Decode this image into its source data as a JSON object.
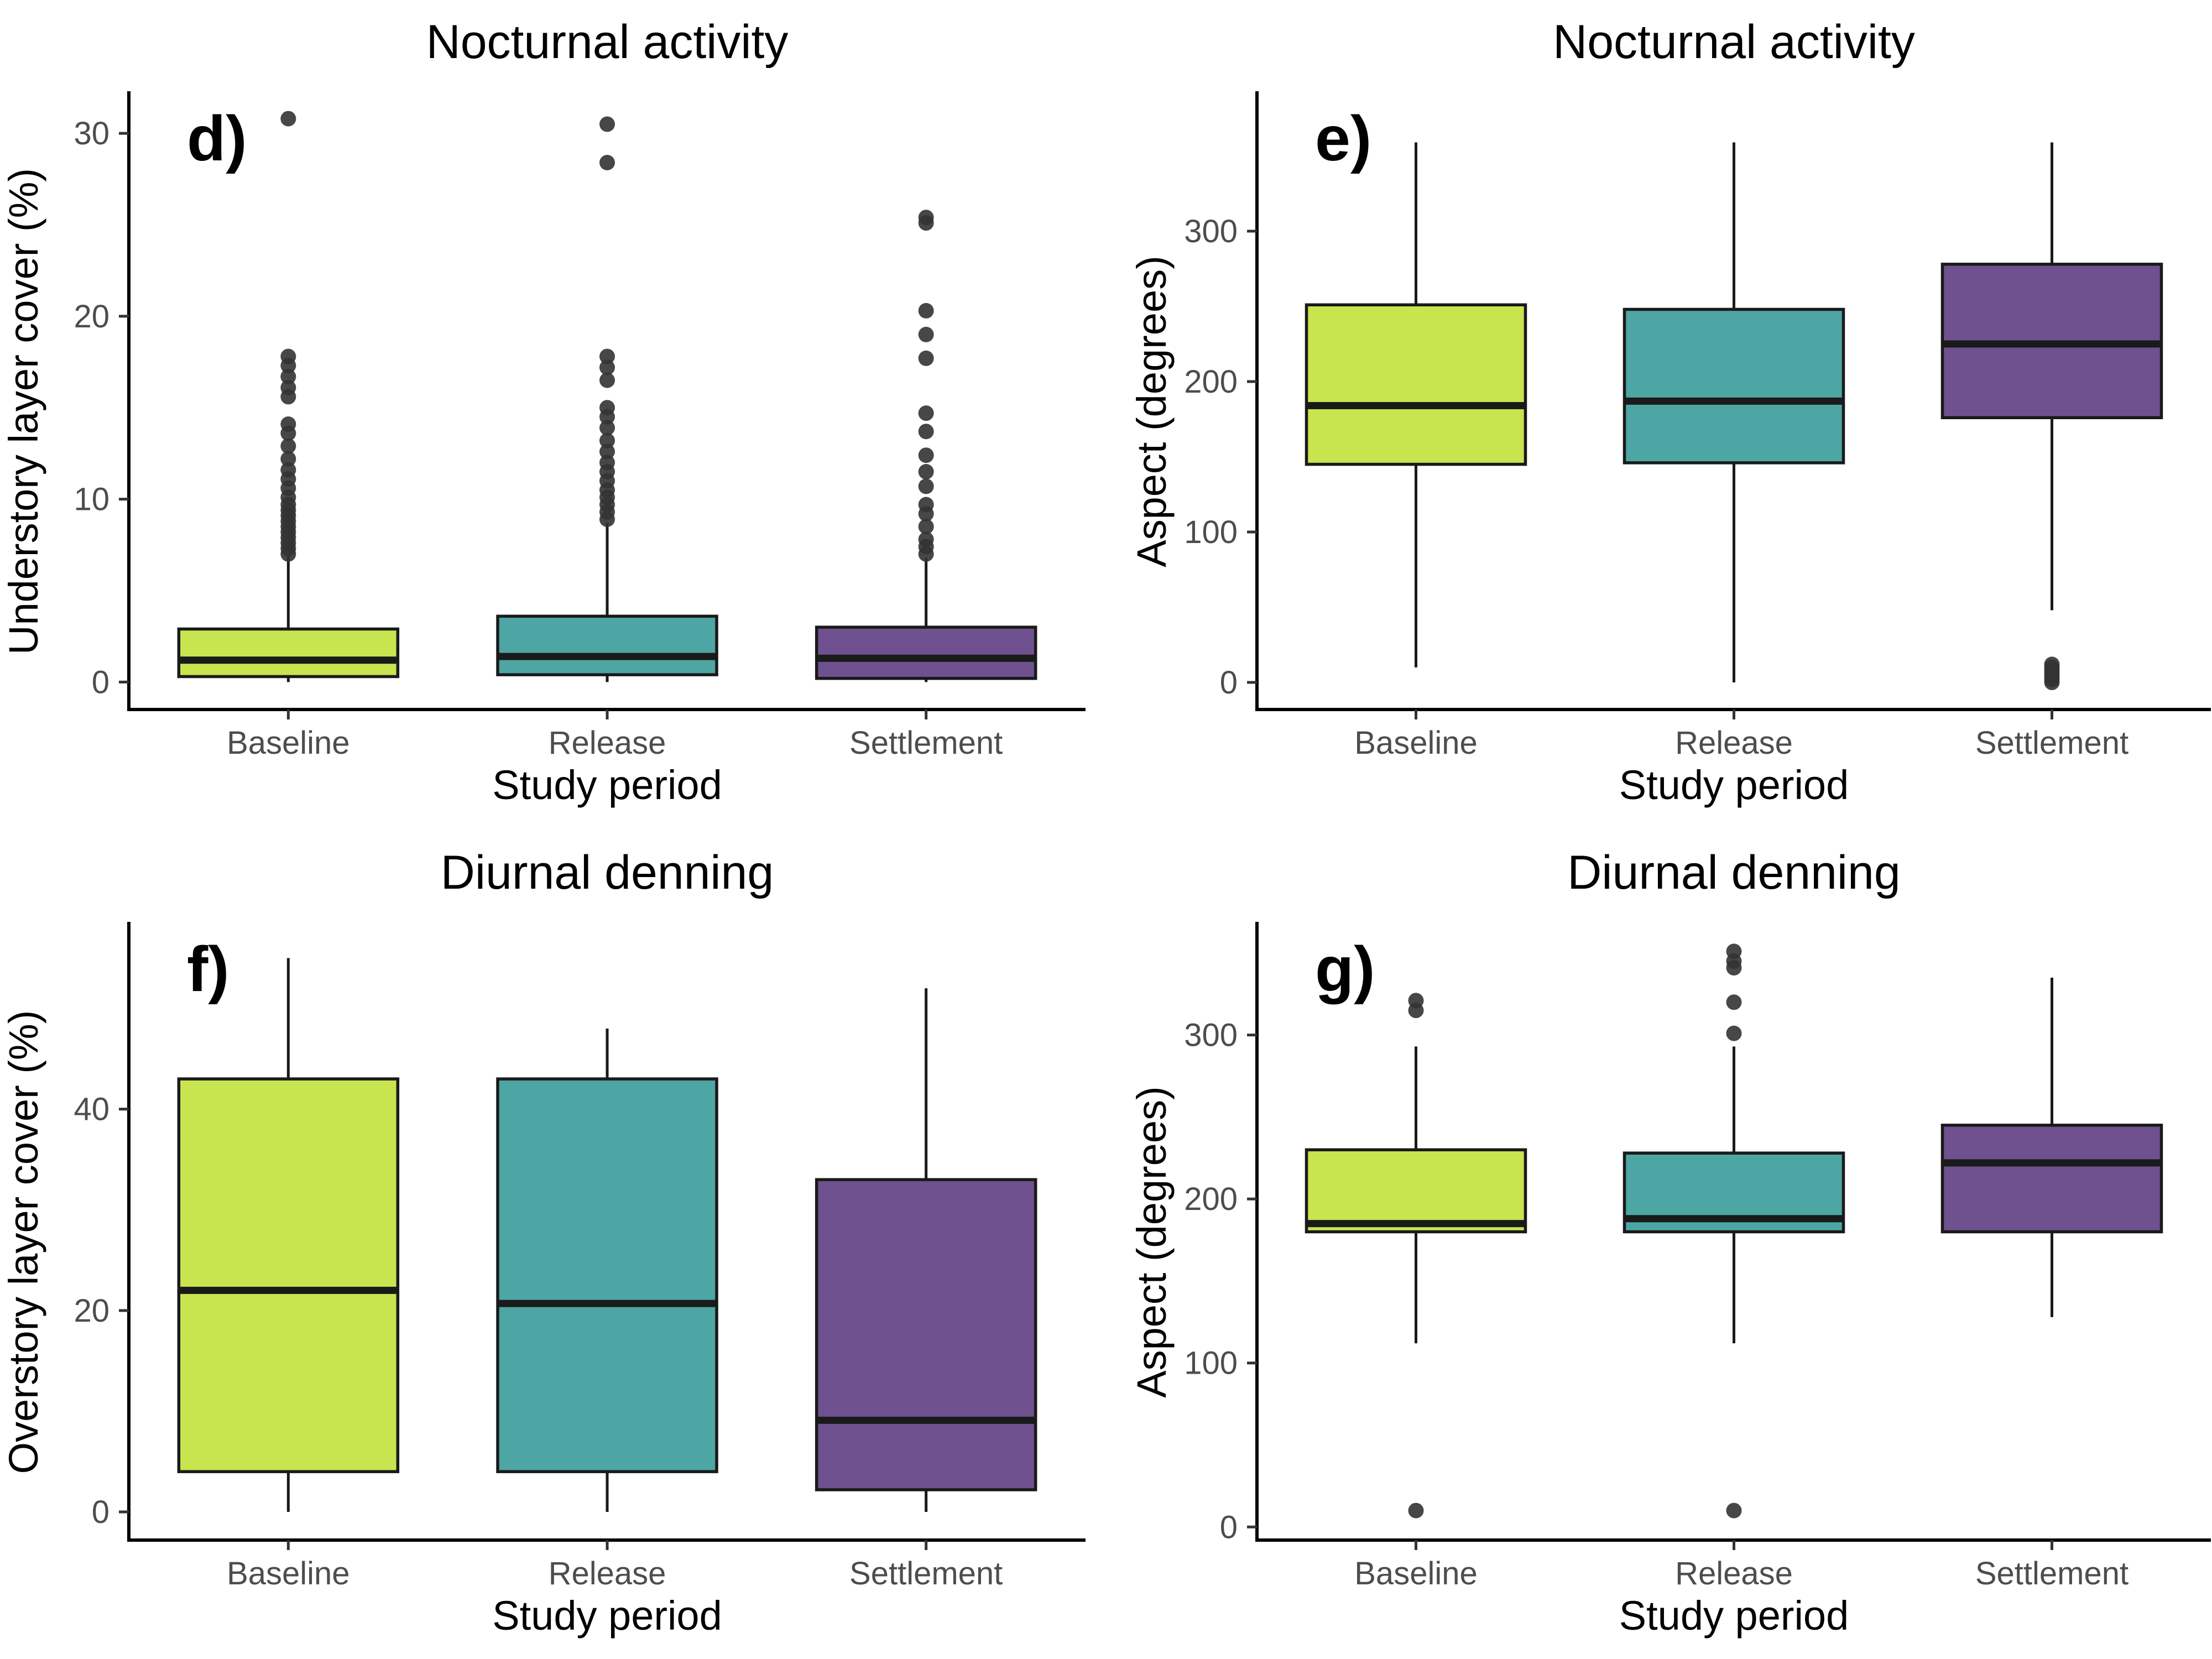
{
  "chart_data": [
    {
      "type": "boxplot",
      "panel": "d)",
      "title": "Nocturnal activity",
      "xlabel": "Study period",
      "ylabel": "Understory layer cover (%)",
      "ylim": [
        -1.5,
        32.3
      ],
      "yticks": [
        0,
        10,
        20,
        30
      ],
      "categories": [
        "Baseline",
        "Release",
        "Settlement"
      ],
      "fill_colors": [
        "#C8E44F",
        "#4DA6A3",
        "#6E518E"
      ],
      "boxes": [
        {
          "min": 0,
          "q1": 0.3,
          "median": 1.2,
          "q3": 2.9,
          "max": 6.9,
          "outliers": [
            7.0,
            7.3,
            7.6,
            7.9,
            8.2,
            8.5,
            8.8,
            9.1,
            9.4,
            9.7,
            10.1,
            10.6,
            11.1,
            11.6,
            12.2,
            12.9,
            13.6,
            14.1,
            15.6,
            16.1,
            16.7,
            17.3,
            17.8,
            30.8
          ]
        },
        {
          "min": 0,
          "q1": 0.4,
          "median": 1.4,
          "q3": 3.6,
          "max": 8.7,
          "outliers": [
            8.9,
            9.3,
            9.7,
            10.1,
            10.5,
            11.0,
            11.5,
            12.0,
            12.6,
            13.2,
            13.9,
            14.5,
            15.0,
            16.5,
            17.2,
            17.8,
            28.4,
            30.5
          ]
        },
        {
          "min": 0,
          "q1": 0.2,
          "median": 1.3,
          "q3": 3.0,
          "max": 6.8,
          "outliers": [
            7.0,
            7.4,
            7.8,
            8.5,
            9.2,
            9.7,
            10.7,
            11.5,
            12.4,
            13.7,
            14.7,
            17.7,
            19.0,
            20.3,
            25.1,
            25.4
          ]
        }
      ]
    },
    {
      "type": "boxplot",
      "panel": "e)",
      "title": "Nocturnal activity",
      "xlabel": "Study period",
      "ylabel": "Aspect (degrees)",
      "ylim": [
        -18,
        393
      ],
      "yticks": [
        0,
        100,
        200,
        300
      ],
      "categories": [
        "Baseline",
        "Release",
        "Settlement"
      ],
      "fill_colors": [
        "#C8E44F",
        "#4DA6A3",
        "#6E518E"
      ],
      "boxes": [
        {
          "min": 10,
          "q1": 145,
          "median": 184,
          "q3": 251,
          "max": 359,
          "outliers": []
        },
        {
          "min": 0,
          "q1": 146,
          "median": 187,
          "q3": 248,
          "max": 359,
          "outliers": []
        },
        {
          "min": 48,
          "q1": 176,
          "median": 225,
          "q3": 278,
          "max": 359,
          "outliers": [
            0,
            2,
            4,
            6,
            8,
            10,
            12
          ]
        }
      ]
    },
    {
      "type": "boxplot",
      "panel": "f)",
      "title": "Diurnal denning",
      "xlabel": "Study period",
      "ylabel": "Overstory layer cover (%)",
      "ylim": [
        -2.8,
        58.6
      ],
      "yticks": [
        0,
        20,
        40
      ],
      "categories": [
        "Baseline",
        "Release",
        "Settlement"
      ],
      "fill_colors": [
        "#C8E44F",
        "#4DA6A3",
        "#6E518E"
      ],
      "boxes": [
        {
          "min": 0,
          "q1": 4,
          "median": 22,
          "q3": 43,
          "max": 55,
          "outliers": []
        },
        {
          "min": 0,
          "q1": 4,
          "median": 20.7,
          "q3": 43,
          "max": 48,
          "outliers": []
        },
        {
          "min": 0,
          "q1": 2.2,
          "median": 9.1,
          "q3": 33,
          "max": 52,
          "outliers": []
        }
      ]
    },
    {
      "type": "boxplot",
      "panel": "g)",
      "title": "Diurnal denning",
      "xlabel": "Study period",
      "ylabel": "Aspect (degrees)",
      "ylim": [
        -8,
        369
      ],
      "yticks": [
        0,
        100,
        200,
        300
      ],
      "categories": [
        "Baseline",
        "Release",
        "Settlement"
      ],
      "fill_colors": [
        "#C8E44F",
        "#4DA6A3",
        "#6E518E"
      ],
      "boxes": [
        {
          "min": 112,
          "q1": 180,
          "median": 185,
          "q3": 230,
          "max": 293,
          "outliers": [
            10,
            315,
            321
          ]
        },
        {
          "min": 112,
          "q1": 180,
          "median": 188,
          "q3": 228,
          "max": 293,
          "outliers": [
            10,
            301,
            320,
            341,
            345,
            351
          ]
        },
        {
          "min": 128,
          "q1": 180,
          "median": 222,
          "q3": 245,
          "max": 335,
          "outliers": []
        }
      ]
    }
  ]
}
